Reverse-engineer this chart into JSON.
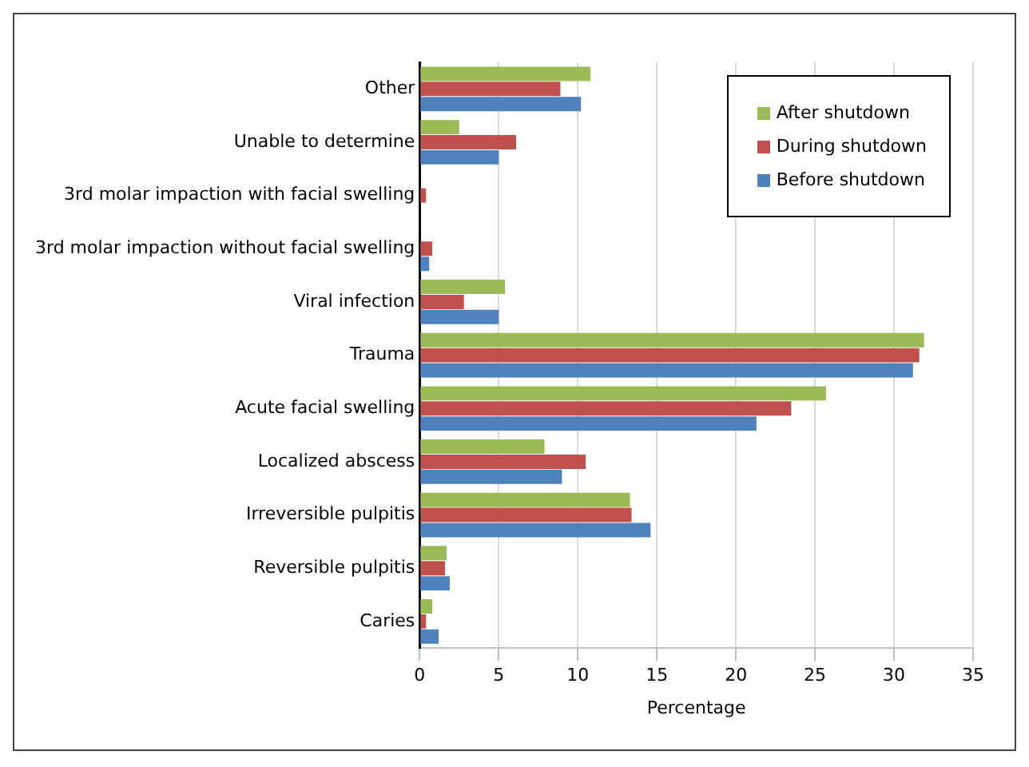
{
  "chart_data": {
    "type": "bar",
    "orientation": "horizontal",
    "xlabel": "Percentage",
    "categories": [
      "Other",
      "Unable to determine",
      "3rd molar impaction with facial swelling",
      "3rd molar impaction without facial swelling",
      "Viral infection",
      "Trauma",
      "Acute facial swelling",
      "Localized abscess",
      "Irreversible pulpitis",
      "Reversible pulpitis",
      "Caries"
    ],
    "series": [
      {
        "name": "After shutdown",
        "color": "#9bbb59",
        "values": [
          10.8,
          2.5,
          0,
          0,
          5.4,
          31.9,
          25.7,
          7.9,
          13.3,
          1.7,
          0.8
        ]
      },
      {
        "name": "During shutdown",
        "color": "#c0504d",
        "values": [
          8.9,
          6.1,
          0.4,
          0.8,
          2.8,
          31.6,
          23.5,
          10.5,
          13.4,
          1.6,
          0.4
        ]
      },
      {
        "name": "Before shutdown",
        "color": "#4f81bd",
        "values": [
          10.2,
          5.0,
          0,
          0.6,
          5.0,
          31.2,
          21.3,
          9.0,
          14.6,
          1.9,
          1.2
        ]
      }
    ],
    "xlim": [
      0,
      35
    ],
    "xticks": [
      0,
      5,
      10,
      15,
      20,
      25,
      30,
      35
    ],
    "grid": "x",
    "legend": "top right"
  }
}
